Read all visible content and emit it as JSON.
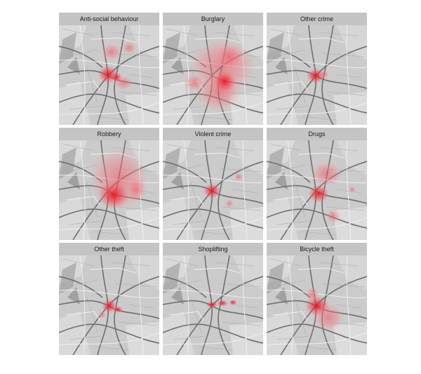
{
  "panels": [
    {
      "title": "Anti-social behaviour"
    },
    {
      "title": "Burglary"
    },
    {
      "title": "Other crime"
    },
    {
      "title": "Robbery"
    },
    {
      "title": "Violent crime"
    },
    {
      "title": "Drugs"
    },
    {
      "title": "Other theft"
    },
    {
      "title": "Shoplifting"
    },
    {
      "title": "Bicycle theft"
    }
  ]
}
